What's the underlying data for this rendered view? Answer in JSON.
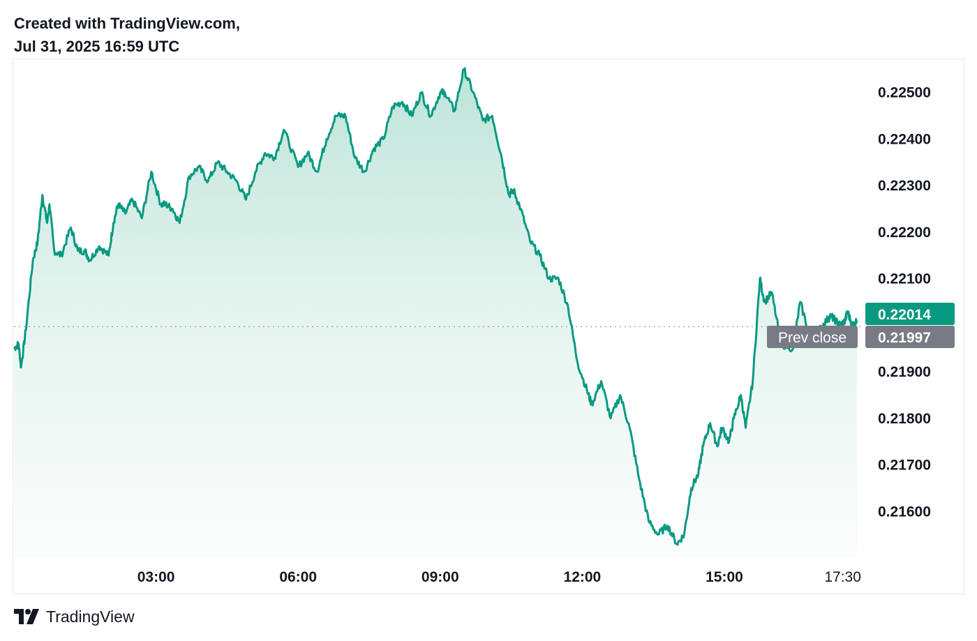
{
  "header": {
    "line1": "Created with TradingView.com,",
    "line2": "Jul 31, 2025 16:59 UTC"
  },
  "footer": {
    "brand": "TradingView",
    "logo_icon": "tradingview-logo-icon"
  },
  "colors": {
    "line": "#089981",
    "fill_top": "#c7e8df",
    "last_tag": "#089981",
    "prev_tag": "#787b86",
    "prev_line": "#9598a1"
  },
  "chart_data": {
    "type": "area",
    "ylim": [
      0.215,
      0.2257
    ],
    "y_ticks": [
      "0.22500",
      "0.22400",
      "0.22300",
      "0.22200",
      "0.22100",
      "0.21900",
      "0.21800",
      "0.21700",
      "0.21600"
    ],
    "y_tick_values": [
      0.225,
      0.224,
      0.223,
      0.222,
      0.221,
      0.219,
      0.218,
      0.217,
      0.216
    ],
    "x_ticks": [
      "03:00",
      "06:00",
      "09:00",
      "12:00",
      "15:00",
      "17:30"
    ],
    "x_tick_hours": [
      3,
      6,
      9,
      12,
      15,
      17.5
    ],
    "x_range_hours": [
      0.0,
      17.8
    ],
    "last_value_label": "0.22014",
    "last_value": 0.22014,
    "prev_close_label": "Prev close",
    "prev_close_value_label": "0.21997",
    "prev_close": 0.21997,
    "series": [
      {
        "hours": [
          0.0,
          0.1,
          0.15,
          0.25,
          0.4,
          0.5,
          0.6,
          0.7,
          0.75,
          0.85,
          1.0,
          1.2,
          1.35,
          1.5,
          1.6,
          1.8,
          2.0,
          2.1,
          2.2,
          2.35,
          2.5,
          2.7,
          2.9,
          3.1,
          3.2,
          3.35,
          3.5,
          3.7,
          3.9,
          4.1,
          4.3,
          4.5,
          4.7,
          4.9,
          5.1,
          5.3,
          5.5,
          5.7,
          6.0,
          6.2,
          6.4,
          6.6,
          6.8,
          7.0,
          7.2,
          7.4,
          7.6,
          7.8,
          8.0,
          8.2,
          8.4,
          8.6,
          8.8,
          9.0,
          9.1,
          9.3,
          9.5,
          9.7,
          9.9,
          10.1,
          10.3,
          10.45,
          10.55,
          10.7,
          10.9,
          11.1,
          11.3,
          11.5,
          11.7,
          11.9,
          12.1,
          12.2,
          12.4,
          12.6,
          12.8,
          13.0,
          13.2,
          13.4,
          13.6,
          13.8,
          14.0,
          14.15,
          14.3,
          14.45,
          14.55,
          14.7,
          14.85,
          14.95,
          15.1,
          15.2,
          15.35,
          15.45,
          15.6,
          15.75,
          15.85,
          16.0,
          16.2,
          16.45,
          16.6,
          16.8,
          17.0,
          17.15,
          17.25,
          17.35,
          17.45,
          17.55,
          17.6,
          17.7,
          17.8
        ],
        "values": [
          0.2195,
          0.2196,
          0.2191,
          0.2199,
          0.2214,
          0.2218,
          0.2228,
          0.2222,
          0.2226,
          0.2216,
          0.2215,
          0.2221,
          0.2216,
          0.2216,
          0.2214,
          0.2217,
          0.2215,
          0.2222,
          0.2226,
          0.2224,
          0.2227,
          0.2223,
          0.2233,
          0.2226,
          0.2226,
          0.2225,
          0.2222,
          0.2232,
          0.2234,
          0.2231,
          0.2235,
          0.2233,
          0.2231,
          0.2227,
          0.2233,
          0.2237,
          0.2236,
          0.2242,
          0.2234,
          0.2237,
          0.2233,
          0.224,
          0.2245,
          0.2245,
          0.2236,
          0.2233,
          0.2238,
          0.224,
          0.2247,
          0.2248,
          0.2245,
          0.225,
          0.2245,
          0.225,
          0.225,
          0.2246,
          0.2255,
          0.225,
          0.2244,
          0.2245,
          0.2236,
          0.2228,
          0.2229,
          0.2225,
          0.2218,
          0.2215,
          0.221,
          0.221,
          0.2204,
          0.2192,
          0.2186,
          0.2183,
          0.2188,
          0.218,
          0.2185,
          0.2178,
          0.2167,
          0.2158,
          0.2155,
          0.2157,
          0.2153,
          0.2155,
          0.2165,
          0.2168,
          0.2174,
          0.2179,
          0.2174,
          0.2178,
          0.2175,
          0.218,
          0.2185,
          0.2178,
          0.2188,
          0.221,
          0.2205,
          0.2207,
          0.2196,
          0.2195,
          0.2205,
          0.2198,
          0.2199,
          0.2201,
          0.2202,
          0.2201,
          0.22,
          0.2201,
          0.2203,
          0.22,
          0.2201
        ]
      }
    ]
  }
}
